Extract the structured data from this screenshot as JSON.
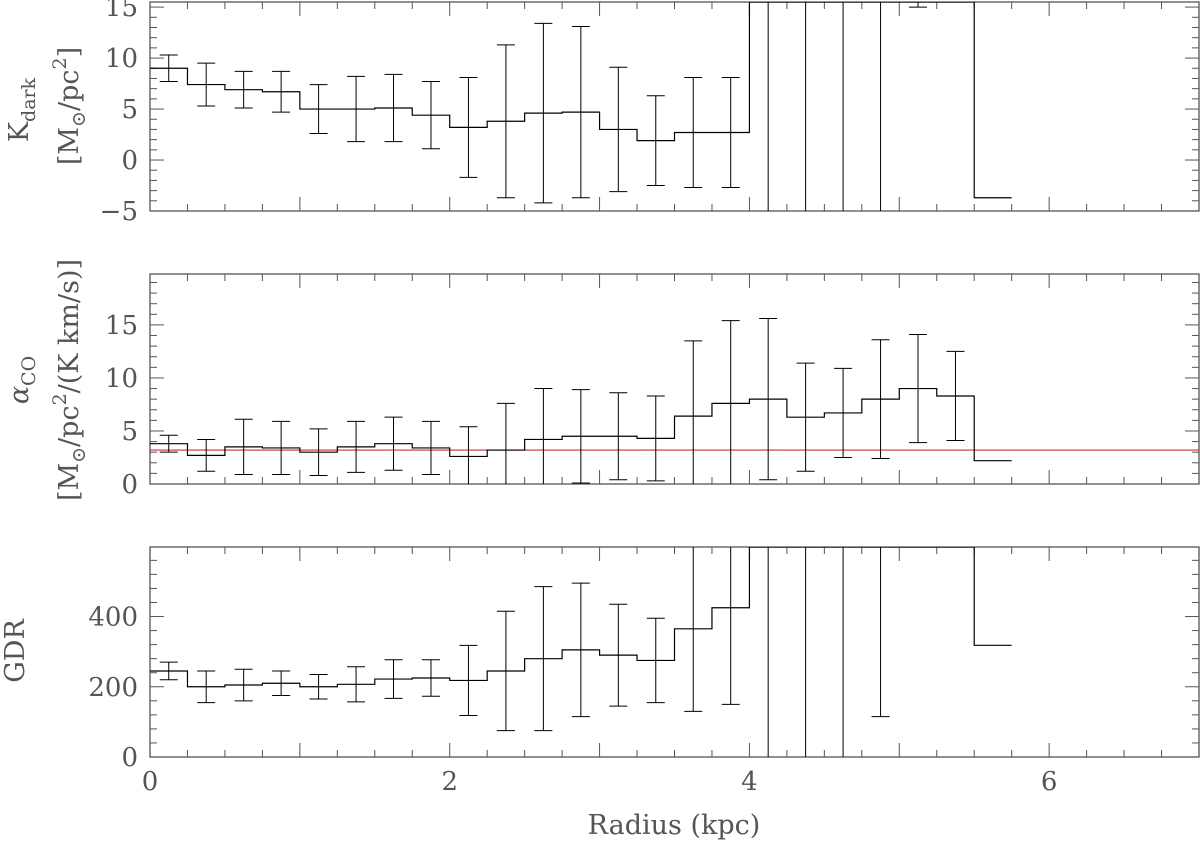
{
  "chart_data": [
    {
      "type": "line",
      "id": "kdark",
      "ylabel_main": "K",
      "ylabel_sub": "dark",
      "yunit_main": "[M",
      "yunit_sun": "⊙",
      "yunit_rest": "/pc",
      "yunit_exp": "2",
      "yunit_close": "]",
      "xlim": [
        0,
        7
      ],
      "ylim": [
        -5,
        15.5
      ],
      "yticks": [
        -5,
        0,
        5,
        10,
        15
      ],
      "grid": false,
      "bin_width": 0.25,
      "x": [
        0.125,
        0.375,
        0.625,
        0.875,
        1.125,
        1.375,
        1.625,
        1.875,
        2.125,
        2.375,
        2.625,
        2.875,
        3.125,
        3.375,
        3.625,
        3.875,
        4.125,
        4.375,
        4.625,
        4.875,
        5.125,
        5.375,
        5.625
      ],
      "y": [
        9.0,
        7.4,
        6.9,
        6.7,
        5.0,
        5.0,
        5.1,
        4.4,
        3.2,
        3.8,
        4.6,
        4.7,
        3.0,
        1.9,
        2.7,
        2.7,
        40,
        40,
        40,
        40,
        40,
        40,
        -3.7
      ],
      "err": [
        1.3,
        2.1,
        1.8,
        2.0,
        2.4,
        3.2,
        3.3,
        3.3,
        4.9,
        7.5,
        8.8,
        8.4,
        6.1,
        4.4,
        5.4,
        5.4,
        50,
        50,
        50,
        50,
        25,
        0,
        0
      ]
    },
    {
      "type": "line",
      "id": "alphaco",
      "ylabel_main": "α",
      "ylabel_sub": "CO",
      "yunit_main": "[M",
      "yunit_sun": "⊙",
      "yunit_rest": "/pc",
      "yunit_exp": "2",
      "yunit_close": "/(K km/s)]",
      "xlim": [
        0,
        7
      ],
      "ylim": [
        0,
        19.8
      ],
      "yticks": [
        0,
        5,
        10,
        15
      ],
      "grid": false,
      "bin_width": 0.25,
      "reference_line": 3.2,
      "reference_color": "#c8323c",
      "x": [
        0.125,
        0.375,
        0.625,
        0.875,
        1.125,
        1.375,
        1.625,
        1.875,
        2.125,
        2.375,
        2.625,
        2.875,
        3.125,
        3.375,
        3.625,
        3.875,
        4.125,
        4.375,
        4.625,
        4.875,
        5.125,
        5.375,
        5.625
      ],
      "y": [
        3.8,
        2.7,
        3.5,
        3.4,
        3.0,
        3.5,
        3.8,
        3.4,
        2.6,
        3.2,
        4.2,
        4.5,
        4.5,
        4.3,
        6.4,
        7.6,
        8.0,
        6.3,
        6.7,
        8.0,
        9.0,
        8.3,
        2.2
      ],
      "err": [
        0.8,
        1.5,
        2.6,
        2.5,
        2.2,
        2.4,
        2.5,
        2.5,
        2.8,
        4.4,
        4.8,
        4.4,
        4.1,
        4.0,
        7.1,
        7.8,
        7.6,
        5.1,
        4.2,
        5.6,
        5.1,
        4.2,
        0
      ]
    },
    {
      "type": "line",
      "id": "gdr",
      "ylabel_main": "GDR",
      "xlabel": "Radius (kpc)",
      "xlim": [
        0,
        7
      ],
      "ylim": [
        0,
        598
      ],
      "yticks": [
        0,
        200,
        400
      ],
      "xticks": [
        0,
        2,
        4,
        6
      ],
      "grid": false,
      "bin_width": 0.25,
      "x": [
        0.125,
        0.375,
        0.625,
        0.875,
        1.125,
        1.375,
        1.625,
        1.875,
        2.125,
        2.375,
        2.625,
        2.875,
        3.125,
        3.375,
        3.625,
        3.875,
        4.125,
        4.375,
        4.625,
        4.875,
        5.125,
        5.375,
        5.625
      ],
      "y": [
        245,
        200,
        205,
        210,
        200,
        207,
        222,
        225,
        218,
        245,
        280,
        305,
        290,
        275,
        365,
        425,
        1000,
        1000,
        1000,
        1000,
        1000,
        1000,
        318
      ],
      "err": [
        25,
        45,
        45,
        35,
        35,
        50,
        55,
        52,
        100,
        170,
        205,
        190,
        145,
        120,
        235,
        275,
        1200,
        1200,
        1200,
        885,
        0,
        0,
        0
      ]
    }
  ]
}
